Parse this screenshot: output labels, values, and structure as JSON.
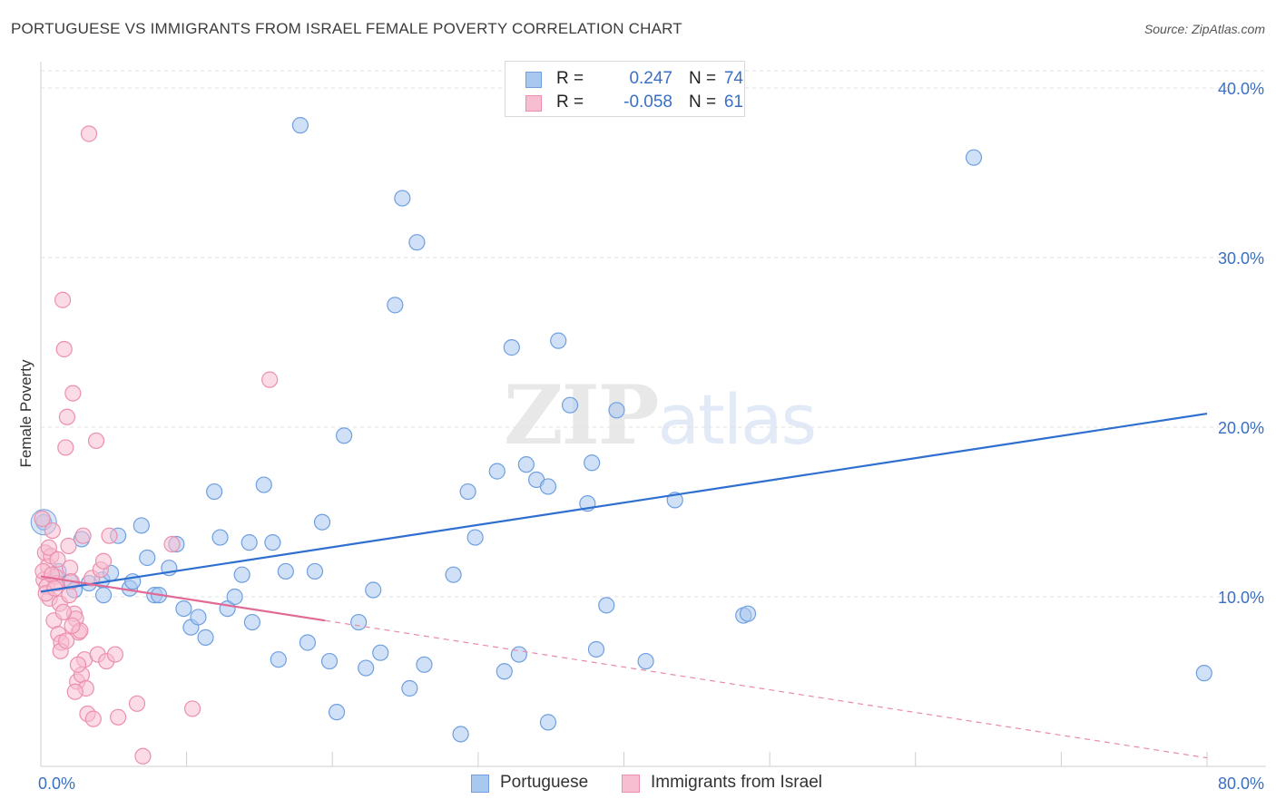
{
  "title": "PORTUGUESE VS IMMIGRANTS FROM ISRAEL FEMALE POVERTY CORRELATION CHART",
  "source": "Source: ZipAtlas.com",
  "watermark": {
    "zip": "ZIP",
    "atlas": "atlas"
  },
  "legend": {
    "rows": [
      {
        "r_label": "R =",
        "r_value": "0.247",
        "n_label": "N =",
        "n_value": "74",
        "color": "#a9c8f0",
        "border": "#6f9fe0"
      },
      {
        "r_label": "R =",
        "r_value": "-0.058",
        "n_label": "N =",
        "n_value": "61",
        "color": "#f7bdd0",
        "border": "#ec8fae"
      }
    ]
  },
  "bottom_legend": [
    {
      "label": "Portuguese",
      "color": "#a9c8f0",
      "border": "#6f9fe0"
    },
    {
      "label": "Immigrants from Israel",
      "color": "#f7bdd0",
      "border": "#ec8fae"
    }
  ],
  "chart_data": {
    "type": "scatter",
    "title": "PORTUGUESE VS IMMIGRANTS FROM ISRAEL FEMALE POVERTY CORRELATION CHART",
    "xlabel": "",
    "ylabel": "Female Poverty",
    "xlim": [
      0,
      80
    ],
    "ylim": [
      0,
      40
    ],
    "x_tick_labels": [
      "0.0%",
      "80.0%"
    ],
    "y_ticks": [
      10,
      20,
      30,
      40
    ],
    "y_tick_labels": [
      "10.0%",
      "20.0%",
      "30.0%",
      "40.0%"
    ],
    "grid": true,
    "legend_position": "top-center",
    "series": [
      {
        "name": "Portuguese",
        "color": "#6f9fe0",
        "fill": "#a9c8f0",
        "points": [
          [
            0.2,
            14.4
          ],
          [
            1.2,
            11.5
          ],
          [
            2.0,
            10.9
          ],
          [
            2.3,
            10.4
          ],
          [
            2.8,
            13.4
          ],
          [
            3.3,
            10.8
          ],
          [
            4.2,
            11.0
          ],
          [
            4.3,
            10.1
          ],
          [
            4.8,
            11.4
          ],
          [
            5.3,
            13.6
          ],
          [
            6.1,
            10.5
          ],
          [
            6.3,
            10.9
          ],
          [
            6.9,
            14.2
          ],
          [
            7.3,
            12.3
          ],
          [
            7.8,
            10.1
          ],
          [
            8.1,
            10.1
          ],
          [
            8.8,
            11.7
          ],
          [
            9.3,
            13.1
          ],
          [
            9.8,
            9.3
          ],
          [
            10.3,
            8.2
          ],
          [
            10.8,
            8.8
          ],
          [
            11.3,
            7.6
          ],
          [
            11.9,
            16.2
          ],
          [
            12.3,
            13.5
          ],
          [
            12.8,
            9.3
          ],
          [
            13.3,
            10.0
          ],
          [
            13.8,
            11.3
          ],
          [
            14.3,
            13.2
          ],
          [
            14.5,
            8.5
          ],
          [
            15.3,
            16.6
          ],
          [
            15.9,
            13.2
          ],
          [
            16.3,
            6.3
          ],
          [
            16.8,
            11.5
          ],
          [
            17.8,
            37.8
          ],
          [
            18.3,
            7.3
          ],
          [
            18.8,
            11.5
          ],
          [
            19.3,
            14.4
          ],
          [
            19.8,
            6.2
          ],
          [
            20.3,
            3.2
          ],
          [
            20.8,
            19.5
          ],
          [
            21.8,
            8.5
          ],
          [
            22.3,
            5.8
          ],
          [
            22.8,
            10.4
          ],
          [
            23.3,
            6.7
          ],
          [
            24.3,
            27.2
          ],
          [
            24.8,
            33.5
          ],
          [
            25.3,
            4.6
          ],
          [
            25.8,
            30.9
          ],
          [
            26.3,
            6.0
          ],
          [
            28.3,
            11.3
          ],
          [
            28.8,
            1.9
          ],
          [
            29.3,
            16.2
          ],
          [
            29.8,
            13.5
          ],
          [
            31.3,
            17.4
          ],
          [
            31.8,
            5.6
          ],
          [
            32.3,
            24.7
          ],
          [
            32.8,
            6.6
          ],
          [
            33.3,
            17.8
          ],
          [
            34.0,
            16.9
          ],
          [
            34.8,
            16.5
          ],
          [
            34.8,
            2.6
          ],
          [
            35.5,
            25.1
          ],
          [
            36.3,
            21.3
          ],
          [
            37.5,
            15.5
          ],
          [
            37.8,
            17.9
          ],
          [
            38.1,
            6.9
          ],
          [
            38.8,
            9.5
          ],
          [
            39.5,
            21.0
          ],
          [
            41.5,
            6.2
          ],
          [
            43.5,
            15.7
          ],
          [
            48.2,
            8.9
          ],
          [
            48.5,
            9.0
          ],
          [
            64.0,
            35.9
          ],
          [
            79.8,
            5.5
          ]
        ],
        "trend": {
          "x": [
            0,
            80
          ],
          "y": [
            10.3,
            20.8
          ],
          "style": "solid"
        }
      },
      {
        "name": "Immigrants from Israel",
        "color": "#ec8fae",
        "fill": "#f7bdd0",
        "points": [
          [
            0.1,
            14.6
          ],
          [
            0.2,
            11.0
          ],
          [
            0.3,
            12.6
          ],
          [
            0.4,
            10.6
          ],
          [
            0.5,
            11.8
          ],
          [
            0.6,
            9.9
          ],
          [
            0.7,
            12.4
          ],
          [
            0.8,
            13.9
          ],
          [
            0.9,
            8.6
          ],
          [
            1.0,
            11.2
          ],
          [
            1.1,
            10.8
          ],
          [
            1.2,
            7.8
          ],
          [
            1.3,
            9.6
          ],
          [
            1.4,
            7.3
          ],
          [
            1.5,
            27.5
          ],
          [
            1.6,
            24.6
          ],
          [
            1.7,
            18.8
          ],
          [
            1.8,
            20.6
          ],
          [
            1.9,
            13.0
          ],
          [
            2.0,
            11.7
          ],
          [
            2.1,
            10.9
          ],
          [
            2.2,
            22.0
          ],
          [
            2.3,
            9.0
          ],
          [
            2.4,
            8.7
          ],
          [
            2.5,
            5.0
          ],
          [
            2.6,
            7.9
          ],
          [
            2.7,
            8.0
          ],
          [
            2.8,
            5.4
          ],
          [
            2.9,
            13.6
          ],
          [
            3.0,
            6.3
          ],
          [
            3.1,
            4.6
          ],
          [
            3.2,
            3.1
          ],
          [
            3.3,
            37.3
          ],
          [
            3.5,
            11.1
          ],
          [
            3.6,
            2.8
          ],
          [
            3.8,
            19.2
          ],
          [
            3.9,
            6.6
          ],
          [
            4.1,
            11.6
          ],
          [
            4.3,
            12.1
          ],
          [
            4.5,
            6.2
          ],
          [
            4.7,
            13.6
          ],
          [
            5.1,
            6.6
          ],
          [
            5.3,
            2.9
          ],
          [
            6.6,
            3.7
          ],
          [
            7.0,
            0.6
          ],
          [
            9.0,
            13.1
          ],
          [
            10.4,
            3.4
          ],
          [
            15.7,
            22.8
          ],
          [
            0.15,
            11.5
          ],
          [
            0.35,
            10.2
          ],
          [
            0.55,
            12.9
          ],
          [
            0.75,
            11.3
          ],
          [
            0.95,
            10.5
          ],
          [
            1.15,
            12.2
          ],
          [
            1.35,
            6.8
          ],
          [
            1.55,
            9.1
          ],
          [
            1.75,
            7.4
          ],
          [
            1.95,
            10.1
          ],
          [
            2.15,
            8.3
          ],
          [
            2.35,
            4.4
          ],
          [
            2.55,
            6.0
          ]
        ],
        "trend": {
          "x": [
            0,
            19.5,
            80
          ],
          "y": [
            11.2,
            8.6,
            0.5
          ],
          "style": "solid-then-dashed"
        }
      }
    ]
  }
}
